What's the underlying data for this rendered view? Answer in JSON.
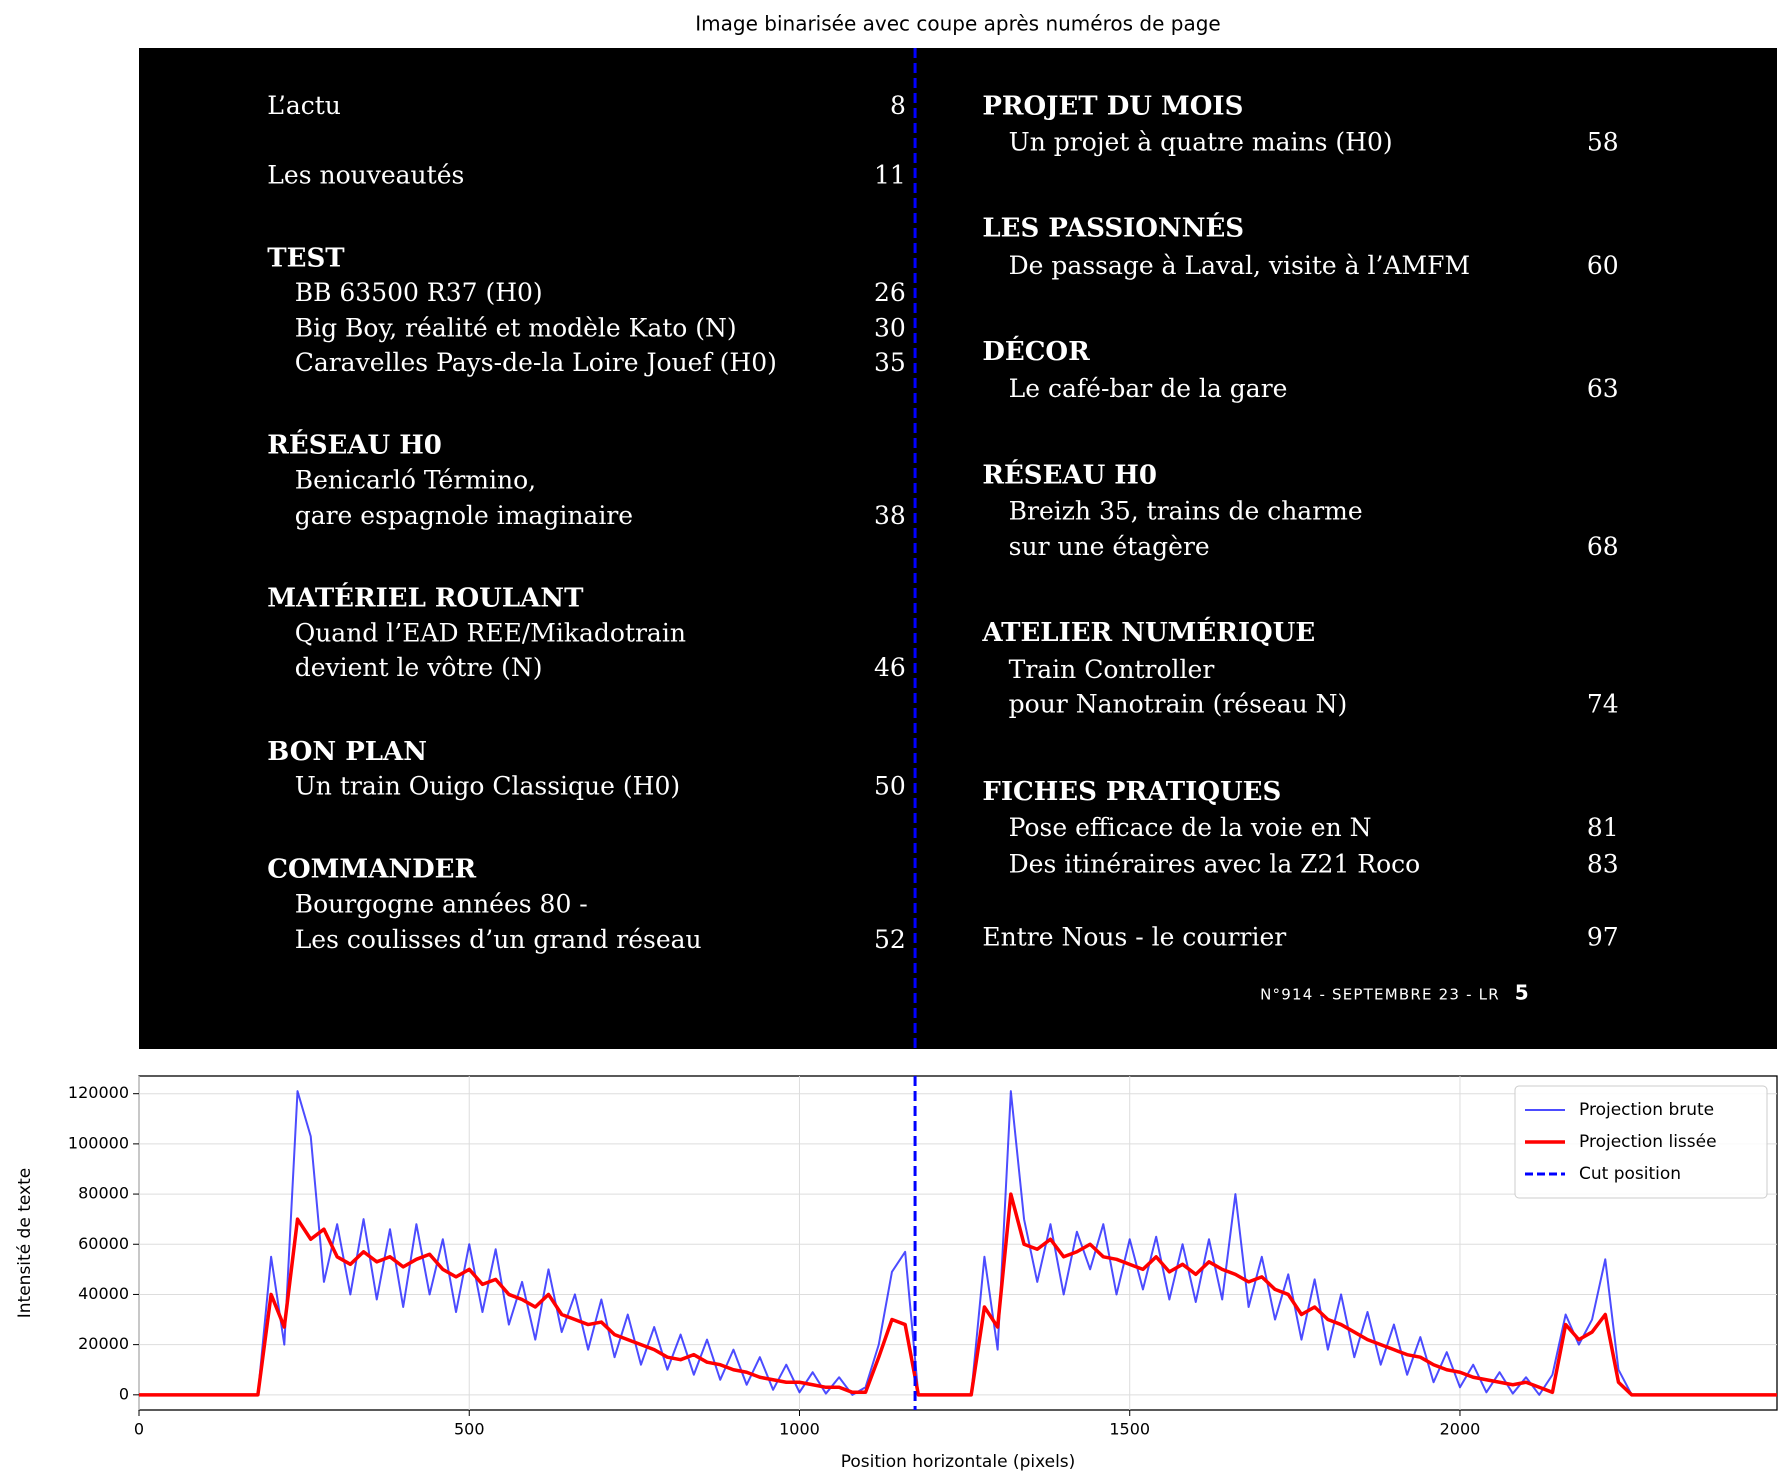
{
  "chart_data": [
    {
      "type": "image",
      "title": "Image binarisée avec coupe après numéros de page",
      "document": {
        "left": [
          {
            "text": "L’actu",
            "page": "8"
          },
          {
            "text": "Les nouveautés",
            "page": "11"
          },
          {
            "text": "TEST"
          },
          {
            "text": "BB 63500 R37 (H0)",
            "page": "26"
          },
          {
            "text": "Big Boy, réalité et modèle Kato (N)",
            "page": "30"
          },
          {
            "text": "Caravelles Pays-de-la Loire Jouef (H0)",
            "page": "35"
          },
          {
            "text": "RÉSEAU H0"
          },
          {
            "text": "Benicarló Término,"
          },
          {
            "text": "gare espagnole imaginaire",
            "page": "38"
          },
          {
            "text": "MATÉRIEL ROULANT"
          },
          {
            "text": "Quand l’EAD REE/Mikadotrain"
          },
          {
            "text": "devient le vôtre (N)",
            "page": "46"
          },
          {
            "text": "BON PLAN"
          },
          {
            "text": "Un train Ouigo Classique (H0)",
            "page": "50"
          },
          {
            "text": "COMMANDER"
          },
          {
            "text": "Bourgogne années 80 -"
          },
          {
            "text": "Les coulisses d’un grand réseau",
            "page": "52"
          }
        ],
        "right": [
          {
            "text": "PROJET DU MOIS"
          },
          {
            "text": "Un projet à quatre mains (H0)",
            "page": "58"
          },
          {
            "text": "LES PASSIONNÉS"
          },
          {
            "text": "De passage à Laval, visite à l’AMFM",
            "page": "60"
          },
          {
            "text": "DÉCOR"
          },
          {
            "text": "Le café-bar de la gare",
            "page": "63"
          },
          {
            "text": "RÉSEAU H0"
          },
          {
            "text": "Breizh 35, trains de charme"
          },
          {
            "text": "sur une étagère",
            "page": "68"
          },
          {
            "text": "ATELIER NUMÉRIQUE"
          },
          {
            "text": "Train Controller"
          },
          {
            "text": "pour Nanotrain (réseau N)",
            "page": "74"
          },
          {
            "text": "FICHES PRATIQUES"
          },
          {
            "text": "Pose efficace de la voie en N",
            "page": "81"
          },
          {
            "text": "Des itinéraires avec la Z21 Roco",
            "page": "83"
          },
          {
            "text": "Entre Nous - le courrier",
            "page": "97"
          }
        ],
        "footer": {
          "issue": "N°914 - SEPTEMBRE 23 - LR",
          "page": "5"
        }
      }
    },
    {
      "type": "line",
      "xlabel": "Position horizontale (pixels)",
      "ylabel": "Intensité de texte",
      "x": [
        0,
        20,
        40,
        60,
        80,
        100,
        120,
        140,
        160,
        180,
        200,
        220,
        240,
        260,
        280,
        300,
        320,
        340,
        360,
        380,
        400,
        420,
        440,
        460,
        480,
        500,
        520,
        540,
        560,
        580,
        600,
        620,
        640,
        660,
        680,
        700,
        720,
        740,
        760,
        780,
        800,
        820,
        840,
        860,
        880,
        900,
        920,
        940,
        960,
        980,
        1000,
        1020,
        1040,
        1060,
        1080,
        1100,
        1120,
        1140,
        1160,
        1180,
        1200,
        1220,
        1240,
        1260,
        1280,
        1300,
        1320,
        1340,
        1360,
        1380,
        1400,
        1420,
        1440,
        1460,
        1480,
        1500,
        1520,
        1540,
        1560,
        1580,
        1600,
        1620,
        1640,
        1660,
        1680,
        1700,
        1720,
        1740,
        1760,
        1780,
        1800,
        1820,
        1840,
        1860,
        1880,
        1900,
        1920,
        1940,
        1960,
        1980,
        2000,
        2020,
        2040,
        2060,
        2080,
        2100,
        2120,
        2140,
        2160,
        2180,
        2200,
        2220,
        2240,
        2260,
        2280,
        2300,
        2320,
        2340,
        2360,
        2380,
        2400,
        2420,
        2440,
        2460,
        2480
      ],
      "series": [
        {
          "name": "Projection brute",
          "color": "#0000ff",
          "opacity": 0.7,
          "width": 2,
          "values": [
            0,
            0,
            0,
            0,
            0,
            0,
            0,
            0,
            0,
            0,
            55000,
            20000,
            121000,
            103000,
            45000,
            68000,
            40000,
            70000,
            38000,
            66000,
            35000,
            68000,
            40000,
            62000,
            33000,
            60000,
            33000,
            58000,
            28000,
            45000,
            22000,
            50000,
            25000,
            40000,
            18000,
            38000,
            15000,
            32000,
            12000,
            27000,
            10000,
            24000,
            8000,
            22000,
            6000,
            18000,
            4000,
            15000,
            2000,
            12000,
            1000,
            9000,
            500,
            7000,
            0,
            3000,
            20000,
            49000,
            57000,
            0,
            0,
            0,
            0,
            0,
            55000,
            18000,
            121000,
            70000,
            45000,
            68000,
            40000,
            65000,
            50000,
            68000,
            40000,
            62000,
            42000,
            63000,
            38000,
            60000,
            37000,
            62000,
            38000,
            80000,
            35000,
            55000,
            30000,
            48000,
            22000,
            46000,
            18000,
            40000,
            15000,
            33000,
            12000,
            28000,
            8000,
            23000,
            5000,
            17000,
            3000,
            12000,
            1000,
            9000,
            500,
            7000,
            0,
            8000,
            32000,
            20000,
            30000,
            54000,
            10000,
            0,
            0,
            0,
            0,
            0,
            0,
            0,
            0,
            0,
            0,
            0,
            0
          ]
        },
        {
          "name": "Projection lissée",
          "color": "#ff0000",
          "opacity": 1,
          "width": 3.5,
          "values": [
            0,
            0,
            0,
            0,
            0,
            0,
            0,
            0,
            0,
            0,
            40000,
            27000,
            70000,
            62000,
            66000,
            55000,
            52000,
            57000,
            53000,
            55000,
            51000,
            54000,
            56000,
            50000,
            47000,
            50000,
            44000,
            46000,
            40000,
            38000,
            35000,
            40000,
            32000,
            30000,
            28000,
            29000,
            24000,
            22000,
            20000,
            18000,
            15000,
            14000,
            16000,
            13000,
            12000,
            10000,
            9000,
            7000,
            6000,
            5000,
            5000,
            4000,
            3000,
            3000,
            1000,
            1000,
            15000,
            30000,
            28000,
            0,
            0,
            0,
            0,
            0,
            35000,
            27000,
            80000,
            60000,
            58000,
            62000,
            55000,
            57000,
            60000,
            55000,
            54000,
            52000,
            50000,
            55000,
            49000,
            52000,
            48000,
            53000,
            50000,
            48000,
            45000,
            47000,
            42000,
            40000,
            32000,
            35000,
            30000,
            28000,
            25000,
            22000,
            20000,
            18000,
            16000,
            15000,
            12000,
            10000,
            9000,
            7000,
            6000,
            5000,
            4000,
            5000,
            3000,
            1000,
            28000,
            22000,
            25000,
            32000,
            5000,
            0,
            0,
            0,
            0,
            0,
            0,
            0,
            0,
            0,
            0,
            0,
            0
          ]
        }
      ],
      "vlines": [
        {
          "name": "Cut position",
          "color": "#0000ff",
          "x": 1175
        }
      ],
      "xlim": [
        0,
        2480
      ],
      "ylim": [
        -6050,
        127050
      ],
      "xticks": [
        0,
        500,
        1000,
        1500,
        2000
      ],
      "yticks": [
        0,
        20000,
        40000,
        60000,
        80000,
        100000,
        120000
      ],
      "grid": true,
      "legend": "upper right"
    }
  ]
}
